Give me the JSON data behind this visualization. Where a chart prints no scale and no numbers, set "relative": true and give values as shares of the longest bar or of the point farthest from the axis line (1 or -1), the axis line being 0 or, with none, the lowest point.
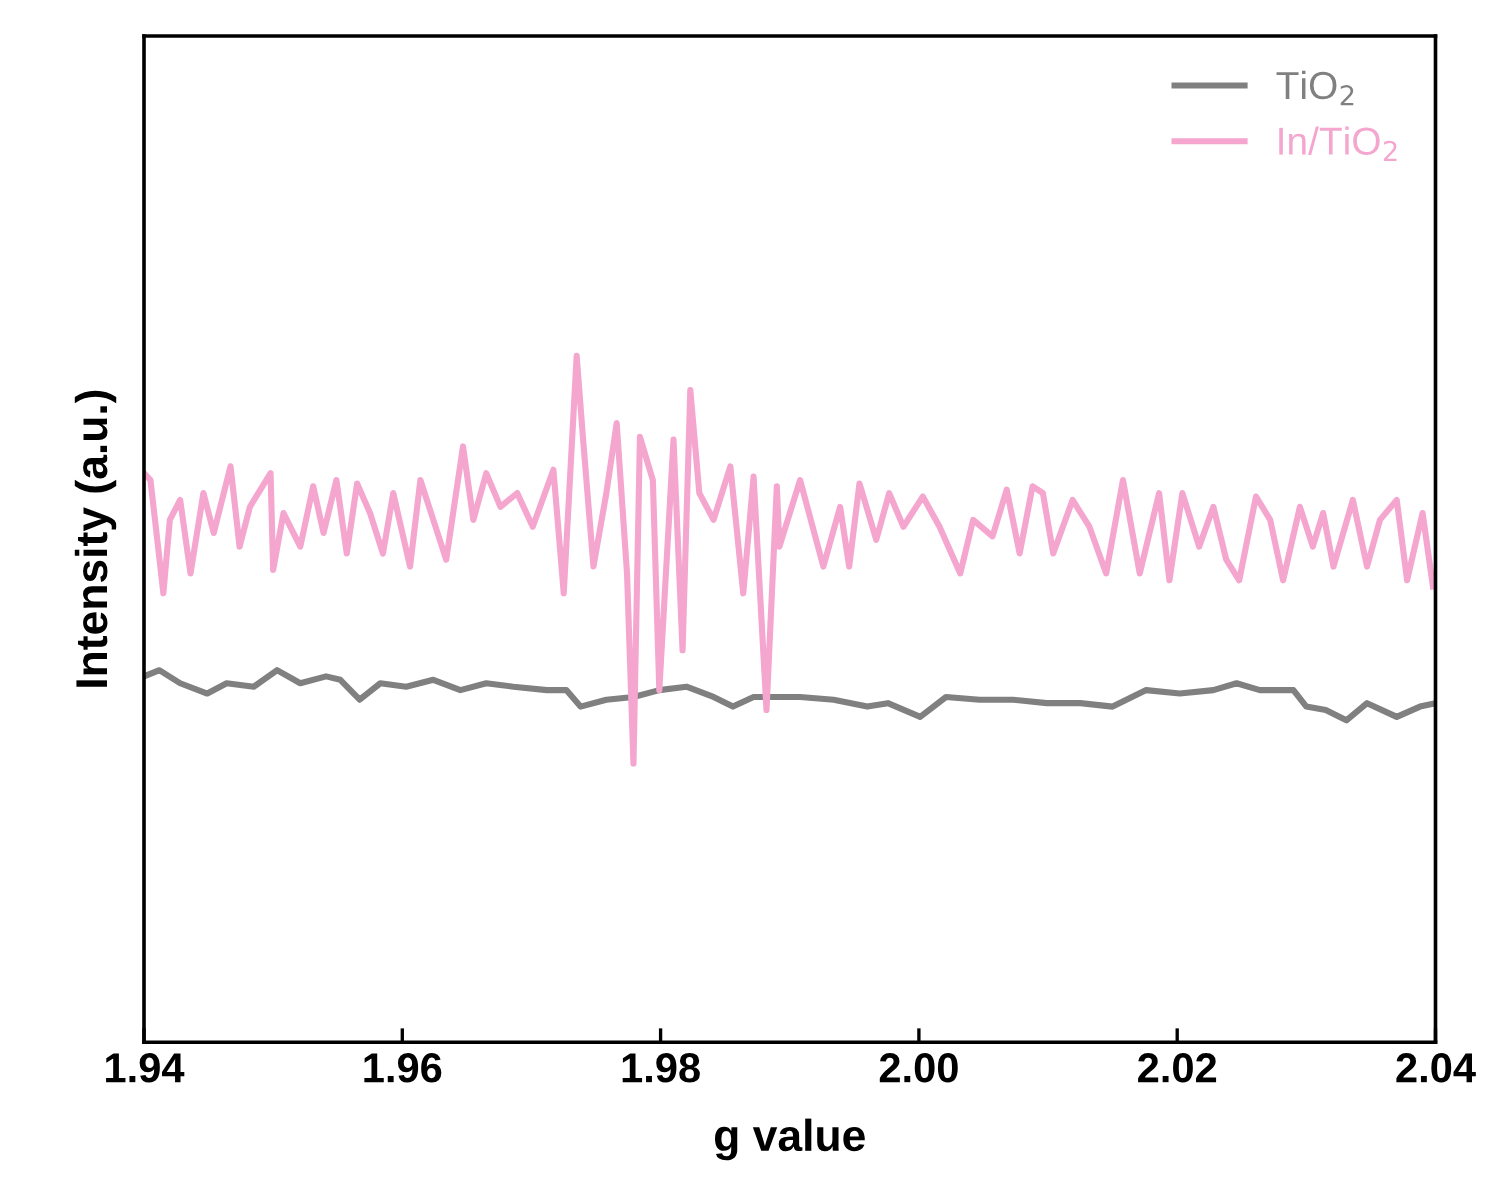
{
  "chart_data": {
    "type": "line",
    "xlabel": "g value",
    "ylabel": "Intensity (a.u.)",
    "relative": true,
    "xlim": [
      1.94,
      2.04
    ],
    "xticks": [
      1.94,
      1.96,
      1.98,
      {
        "value": 2.0,
        "label": "2.00"
      },
      2.02,
      2.04
    ],
    "tick_labels": "x",
    "grid": false,
    "legend": "top right",
    "marker": "none",
    "line_style": "solid",
    "series": [
      {
        "name": "TiO$_{2}$",
        "color": "#808080",
        "x": [
          1.94,
          1.9412,
          1.9428,
          1.9449,
          1.9464,
          1.9485,
          1.9503,
          1.9521,
          1.9541,
          1.9552,
          1.9567,
          1.9583,
          1.9603,
          1.9624,
          1.9645,
          1.9665,
          1.9686,
          1.9712,
          1.9727,
          1.9738,
          1.9758,
          1.9779,
          1.9799,
          1.982,
          1.9841,
          1.9856,
          1.9872,
          1.9908,
          1.9934,
          1.996,
          1.9976,
          2.0001,
          2.0021,
          2.0047,
          2.0073,
          2.0099,
          2.0125,
          2.015,
          2.0176,
          2.0202,
          2.0228,
          2.0246,
          2.0264,
          2.029,
          2.03,
          2.0315,
          2.0331,
          2.0347,
          2.037,
          2.0388,
          2.04
        ],
        "values": [
          0.533,
          0.542,
          0.523,
          0.508,
          0.523,
          0.518,
          0.542,
          0.523,
          0.533,
          0.528,
          0.499,
          0.523,
          0.518,
          0.528,
          0.513,
          0.523,
          0.518,
          0.513,
          0.513,
          0.489,
          0.499,
          0.503,
          0.513,
          0.518,
          0.503,
          0.489,
          0.503,
          0.503,
          0.499,
          0.489,
          0.494,
          0.474,
          0.503,
          0.499,
          0.499,
          0.494,
          0.494,
          0.489,
          0.513,
          0.508,
          0.513,
          0.523,
          0.513,
          0.513,
          0.489,
          0.484,
          0.469,
          0.494,
          0.474,
          0.489,
          0.494
        ]
      },
      {
        "name": "In/TiO$_{2}$",
        "color": "#f4a6cf",
        "x": [
          1.94,
          1.9405,
          1.9415,
          1.942,
          1.9428,
          1.9436,
          1.9446,
          1.9454,
          1.9467,
          1.9474,
          1.9482,
          1.9498,
          1.95,
          1.9508,
          1.9521,
          1.9531,
          1.9539,
          1.9549,
          1.9557,
          1.9565,
          1.9575,
          1.9585,
          1.9593,
          1.9606,
          1.9614,
          1.9624,
          1.9634,
          1.9647,
          1.9655,
          1.9665,
          1.9676,
          1.9689,
          1.9701,
          1.9717,
          1.9725,
          1.9735,
          1.974,
          1.9748,
          1.9758,
          1.9766,
          1.9774,
          1.9779,
          1.9784,
          1.9794,
          1.9799,
          1.981,
          1.9817,
          1.9823,
          1.983,
          1.9841,
          1.9854,
          1.9864,
          1.9872,
          1.9882,
          1.989,
          1.9892,
          1.9908,
          1.9926,
          1.9939,
          1.9946,
          1.9954,
          1.9967,
          1.9977,
          1.9988,
          2.0003,
          2.0016,
          2.0032,
          2.0042,
          2.0057,
          2.0068,
          2.0078,
          2.0088,
          2.0096,
          2.0104,
          2.0119,
          2.0132,
          2.0145,
          2.0158,
          2.0171,
          2.0186,
          2.0194,
          2.0204,
          2.0217,
          2.0228,
          2.0238,
          2.0248,
          2.0261,
          2.0272,
          2.0282,
          2.0295,
          2.0305,
          2.0313,
          2.0321,
          2.0336,
          2.0347,
          2.0357,
          2.037,
          2.0378,
          2.039,
          2.0398
        ],
        "values": [
          0.829,
          0.819,
          0.654,
          0.761,
          0.79,
          0.683,
          0.8,
          0.742,
          0.839,
          0.722,
          0.78,
          0.829,
          0.688,
          0.771,
          0.722,
          0.81,
          0.742,
          0.819,
          0.712,
          0.814,
          0.771,
          0.712,
          0.8,
          0.693,
          0.819,
          0.761,
          0.703,
          0.868,
          0.761,
          0.829,
          0.78,
          0.8,
          0.751,
          0.834,
          0.654,
          1.0,
          0.878,
          0.693,
          0.8,
          0.902,
          0.683,
          0.406,
          0.882,
          0.819,
          0.513,
          0.878,
          0.571,
          0.95,
          0.8,
          0.761,
          0.839,
          0.654,
          0.824,
          0.484,
          0.81,
          0.722,
          0.819,
          0.693,
          0.78,
          0.693,
          0.814,
          0.732,
          0.8,
          0.751,
          0.795,
          0.751,
          0.683,
          0.761,
          0.737,
          0.805,
          0.712,
          0.81,
          0.8,
          0.712,
          0.79,
          0.751,
          0.683,
          0.819,
          0.683,
          0.8,
          0.673,
          0.8,
          0.722,
          0.78,
          0.703,
          0.673,
          0.795,
          0.761,
          0.673,
          0.78,
          0.722,
          0.771,
          0.693,
          0.79,
          0.693,
          0.761,
          0.79,
          0.673,
          0.771,
          0.664
        ]
      }
    ]
  }
}
